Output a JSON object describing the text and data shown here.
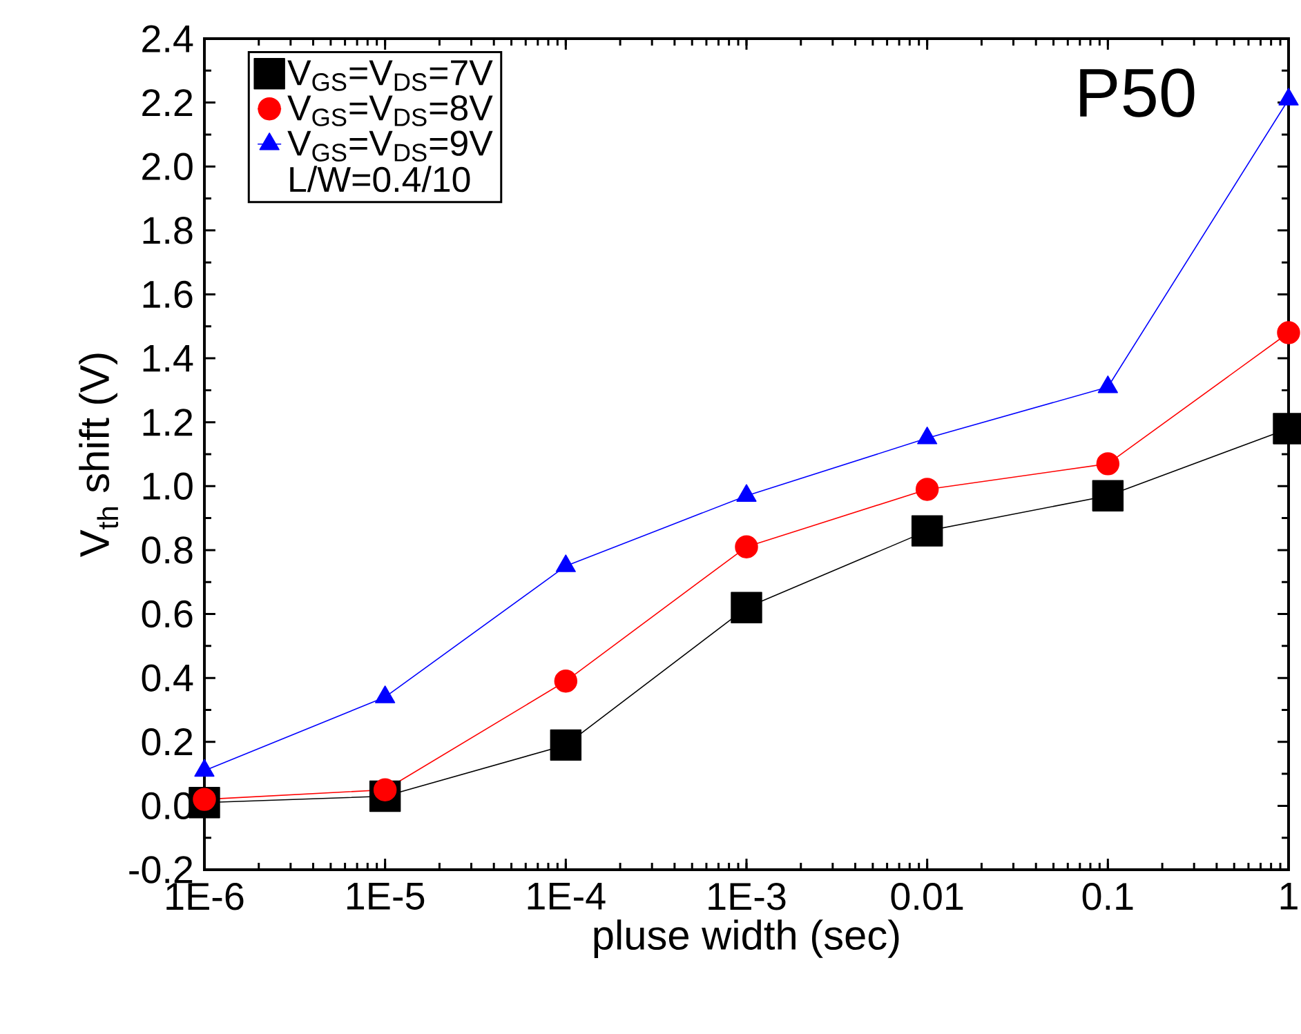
{
  "chart_data": {
    "type": "line",
    "xlabel": "pluse width (sec)",
    "ylabel": "V$_{th}$ shift (V)",
    "log": "x",
    "x": [
      1e-06,
      1e-05,
      0.0001,
      0.001,
      0.01,
      0.1,
      1
    ],
    "series": [
      {
        "name": "V$_{GS}$=V$_{DS}$=7V",
        "color": "#000000",
        "marker": "square",
        "values": [
          0.01,
          0.03,
          0.19,
          0.62,
          0.86,
          0.97,
          1.18
        ]
      },
      {
        "name": "V$_{GS}$=V$_{DS}$=8V",
        "color": "#ff0000",
        "marker": "circle",
        "values": [
          0.02,
          0.05,
          0.39,
          0.81,
          0.99,
          1.07,
          1.48
        ]
      },
      {
        "name": "V$_{GS}$=V$_{DS}$=9V",
        "color": "#0000ff",
        "marker": "triangle",
        "values": [
          0.11,
          0.34,
          0.75,
          0.97,
          1.15,
          1.31,
          2.21
        ]
      }
    ],
    "xlim": [
      1e-06,
      1
    ],
    "xticks": [
      {
        "value": 1e-06,
        "label": "1E-6"
      },
      {
        "value": 1e-05,
        "label": "1E-5"
      },
      {
        "value": 0.0001,
        "label": "1E-4"
      },
      {
        "value": 0.001,
        "label": "1E-3"
      },
      0.01,
      0.1,
      1
    ],
    "ylim": [
      -0.2,
      2.4
    ],
    "yticks": [
      -0.2,
      {
        "value": 0,
        "label": "0.0"
      },
      0.2,
      0.4,
      0.6,
      0.8,
      {
        "value": 1,
        "label": "1.0"
      },
      1.2,
      1.4,
      1.6,
      1.8,
      {
        "value": 2,
        "label": "2.0"
      },
      2.2,
      2.4
    ],
    "annotations": [
      "P50",
      "L/W=0.4/10"
    ],
    "legend": "top left",
    "line_style": "solid",
    "grid": false
  }
}
